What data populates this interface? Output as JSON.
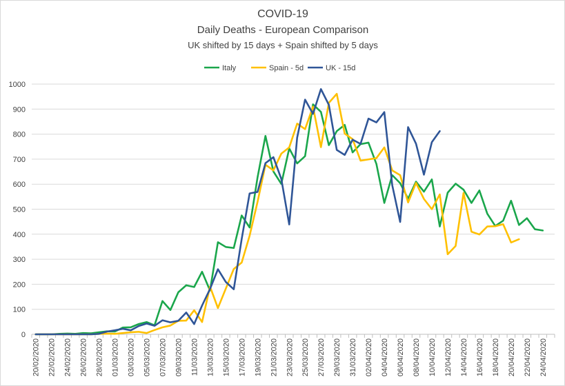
{
  "chart_data": {
    "type": "line",
    "title": "COVID-19",
    "subtitle": "Daily Deaths - European Comparison",
    "subtitle2": "UK shifted by 15 days + Spain shifted by 5 days",
    "xlabel": "",
    "ylabel": "",
    "ylim": [
      0,
      1000
    ],
    "yticks": [
      0,
      100,
      200,
      300,
      400,
      500,
      600,
      700,
      800,
      900,
      1000
    ],
    "grid": "horizontal",
    "legend_position": "top",
    "start_date": "20/02/2020",
    "x_tick_labels": [
      "20/02/2020",
      "22/02/2020",
      "24/02/2020",
      "26/02/2020",
      "28/02/2020",
      "01/03/2020",
      "03/03/2020",
      "05/03/2020",
      "07/03/2020",
      "09/03/2020",
      "11/03/2020",
      "13/03/2020",
      "15/03/2020",
      "17/03/2020",
      "19/03/2020",
      "21/03/2020",
      "23/03/2020",
      "25/03/2020",
      "27/03/2020",
      "29/03/2020",
      "31/03/2020",
      "02/04/2020",
      "04/04/2020",
      "06/04/2020",
      "08/04/2020",
      "10/04/2020",
      "12/04/2020",
      "14/04/2020",
      "16/04/2020",
      "18/04/2020",
      "20/04/2020",
      "22/04/2020",
      "24/04/2020"
    ],
    "series": [
      {
        "name": "Italy",
        "color": "#1aa64b",
        "values": [
          0,
          0,
          0,
          2,
          3,
          2,
          5,
          4,
          8,
          12,
          11,
          27,
          28,
          41,
          49,
          36,
          133,
          97,
          168,
          196,
          189,
          250,
          175,
          368,
          349,
          345,
          475,
          427,
          627,
          793,
          651,
          601,
          743,
          683,
          712,
          919,
          889,
          756,
          812,
          837,
          727,
          760,
          766,
          681,
          525,
          636,
          604,
          542,
          610,
          570,
          619,
          431,
          566,
          602,
          578,
          525,
          575,
          482,
          433,
          454,
          534,
          437,
          464,
          420,
          415
        ]
      },
      {
        "name": "Spain - 5d",
        "color": "#ffc000",
        "values": [
          0,
          0,
          0,
          0,
          0,
          0,
          0,
          0,
          2,
          3,
          2,
          5,
          8,
          10,
          5,
          17,
          28,
          35,
          54,
          55,
          96,
          49,
          191,
          105,
          183,
          261,
          287,
          394,
          529,
          678,
          655,
          722,
          747,
          842,
          820,
          910,
          748,
          925,
          961,
          802,
          780,
          694,
          699,
          704,
          747,
          655,
          636,
          527,
          605,
          541,
          500,
          559,
          320,
          353,
          565,
          410,
          399,
          431,
          432,
          440,
          367,
          380
        ]
      },
      {
        "name": "UK - 15d",
        "color": "#2f5597",
        "values": [
          0,
          0,
          0,
          0,
          0,
          0,
          0,
          0,
          2,
          11,
          16,
          22,
          16,
          33,
          43,
          34,
          56,
          48,
          54,
          87,
          41,
          115,
          181,
          260,
          209,
          180,
          381,
          563,
          569,
          684,
          708,
          621,
          439,
          786,
          938,
          881,
          980,
          917,
          737,
          717,
          778,
          761,
          862,
          847,
          888,
          596,
          449,
          828,
          762,
          638,
          768,
          812
        ]
      }
    ]
  }
}
